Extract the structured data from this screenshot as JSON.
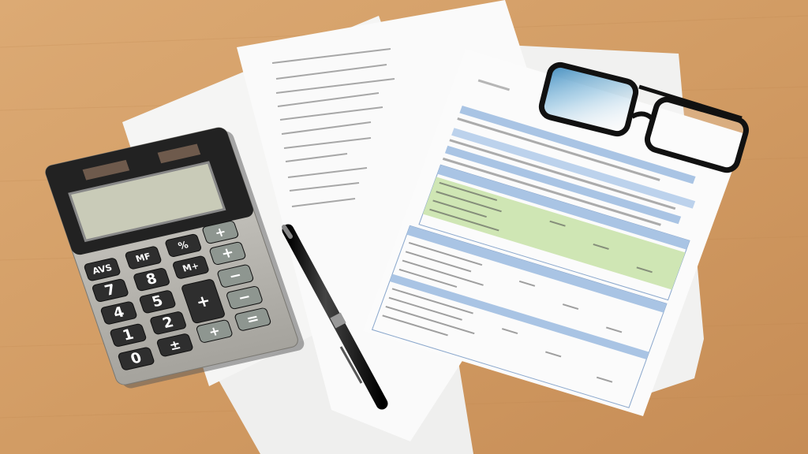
{
  "scene": {
    "colors": {
      "desk_wood": "#d6a06a",
      "paper": "#f7f7f6",
      "sheet_header_blue": "#a9c4e4",
      "sheet_row_green": "#cfe6b4",
      "calculator_body": "#b9b7b1",
      "calculator_top": "#222222",
      "lcd": "#c9cbb8",
      "dark_key": "#2e2e2e",
      "gray_key": "#8e9690",
      "glasses_frame": "#111111",
      "lens_tint": "#3f8fc4",
      "pen": "#141414"
    }
  },
  "calculator": {
    "keys": {
      "avs": "AVS",
      "k7": "7",
      "k4": "4",
      "k1": "1",
      "k0": "0",
      "mf": "MF",
      "k8": "8",
      "k5": "5",
      "k2": "2",
      "pm": "±",
      "pct": "%",
      "mplus": "M+",
      "bigplus": "+",
      "plus_b": "+",
      "r1": "+",
      "r2": "+",
      "r3": "−",
      "r4": "−",
      "eq": "="
    }
  }
}
